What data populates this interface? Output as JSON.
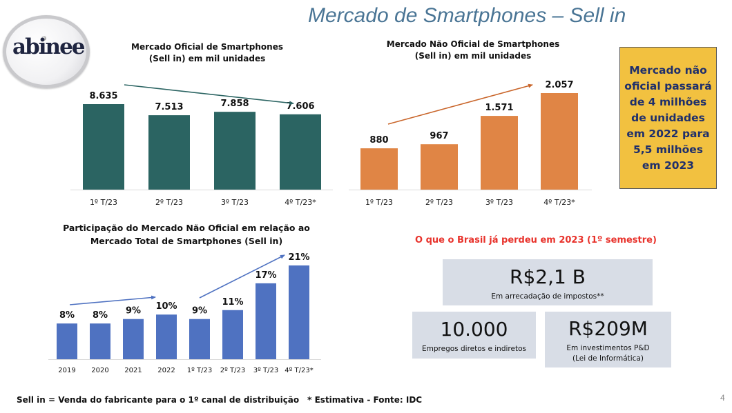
{
  "slide": {
    "title": "Mercado de Smartphones – Sell in",
    "logo_text": "abinee",
    "page_number": "4"
  },
  "callout": {
    "text": "Mercado não oficial passará de 4 milhões de unidades em 2022 para 5,5 milhões em 2023"
  },
  "losses": {
    "title": "O que o Brasil já perdeu em 2023 (1º semestre)",
    "items": [
      {
        "value": "R$2,1 B",
        "label": "Em arrecadação de impostos**"
      },
      {
        "value": "10.000",
        "label": "Empregos diretos e indiretos"
      },
      {
        "value": "R$209M",
        "label": "Em investimentos P&D",
        "label2": "(Lei de Informática)"
      }
    ]
  },
  "footer": {
    "definition": "Sell in = Venda do fabricante para o 1º canal de distribuição",
    "note": "* Estimativa - Fonte: IDC"
  },
  "colors": {
    "official": "#2b6462",
    "unofficial": "#e08545",
    "share": "#4f72c1",
    "title": "#4a7595",
    "callout_bg": "#f2c140",
    "callout_text": "#1f2f6b",
    "alert": "#e8322b",
    "stat_bg": "#d8dde6"
  },
  "chart_data": [
    {
      "type": "bar",
      "title_line1": "Mercado Oficial de Smartphones",
      "title_line2": "(Sell in) em mil unidades",
      "categories": [
        "1º T/23",
        "2º T/23",
        "3º T/23",
        "4º T/23*"
      ],
      "values": [
        8635,
        7513,
        7858,
        7606
      ],
      "labels": [
        "8.635",
        "7.513",
        "7.858",
        "7.606"
      ],
      "xlabel": "",
      "ylabel": "",
      "grid": false,
      "trend": "down"
    },
    {
      "type": "bar",
      "title_line1": "Mercado Não Oficial de Smartphones",
      "title_line2": "(Sell in) em mil unidades",
      "categories": [
        "1º T/23",
        "2º T/23",
        "3º T/23",
        "4º T/23*"
      ],
      "values": [
        880,
        967,
        1571,
        2057
      ],
      "labels": [
        "880",
        "967",
        "1.571",
        "2.057"
      ],
      "xlabel": "",
      "ylabel": "",
      "grid": false,
      "trend": "up"
    },
    {
      "type": "bar",
      "title_line1": "Participação do Mercado Não Oficial em relação ao",
      "title_line2": "Mercado Total de Smartphones (Sell in)",
      "categories": [
        "2019",
        "2020",
        "2021",
        "2022",
        "1º T/23",
        "2º T/23",
        "3º T/23",
        "4º T/23*"
      ],
      "values": [
        8,
        8,
        9,
        10,
        9,
        11,
        17,
        21
      ],
      "labels": [
        "8%",
        "8%",
        "9%",
        "10%",
        "9%",
        "11%",
        "17%",
        "21%"
      ],
      "unit": "%",
      "xlabel": "",
      "ylabel": "",
      "grid": false,
      "trend": "up"
    }
  ]
}
